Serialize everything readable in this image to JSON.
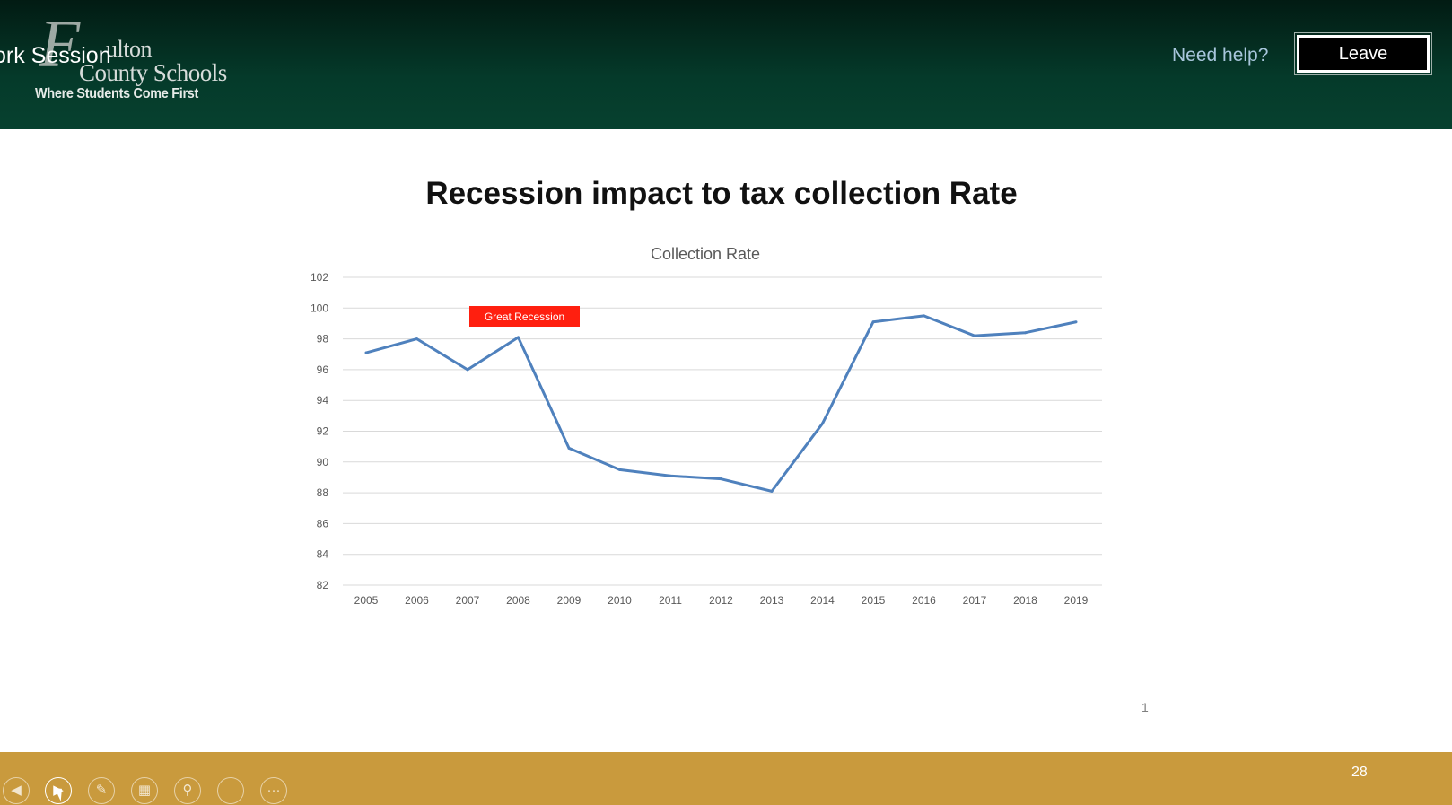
{
  "header": {
    "session_title": "ork Session",
    "logo": {
      "script_letter": "F",
      "line1": "ulton",
      "line2": "County Schools",
      "tagline": "Where Students Come First"
    },
    "need_help_label": "Need help?",
    "leave_label": "Leave",
    "bg_color": "#053a2a"
  },
  "slide": {
    "title": "Recession impact to tax collection Rate",
    "page_marker": "1"
  },
  "chart_data": {
    "type": "line",
    "title": "Collection Rate",
    "xlabel": "",
    "ylabel": "",
    "categories": [
      "2005",
      "2006",
      "2007",
      "2008",
      "2009",
      "2010",
      "2011",
      "2012",
      "2013",
      "2014",
      "2015",
      "2016",
      "2017",
      "2018",
      "2019"
    ],
    "series": [
      {
        "name": "Collection Rate",
        "color": "#4f81bd",
        "values": [
          97.1,
          98.0,
          96.0,
          98.1,
          90.9,
          89.5,
          89.1,
          88.9,
          88.1,
          92.5,
          99.1,
          99.5,
          98.2,
          98.4,
          99.1
        ]
      }
    ],
    "ylim": [
      82,
      102
    ],
    "yticks": [
      82,
      84,
      86,
      88,
      90,
      92,
      94,
      96,
      98,
      100,
      102
    ],
    "grid": true,
    "annotation": {
      "text": "Great Recession",
      "color": "#ff1f0f",
      "anchor_category": "2007"
    }
  },
  "toolbar": {
    "prev_icon": "chevron-left-icon",
    "next_icon": "play-icon",
    "pen_icon": "pen-icon",
    "slides_icon": "slides-grid-icon",
    "zoom_icon": "zoom-icon",
    "subtitles_icon": "subtitles-icon",
    "more_icon": "more-icon",
    "slide_number": "28",
    "bg_color": "#c99a3d"
  }
}
